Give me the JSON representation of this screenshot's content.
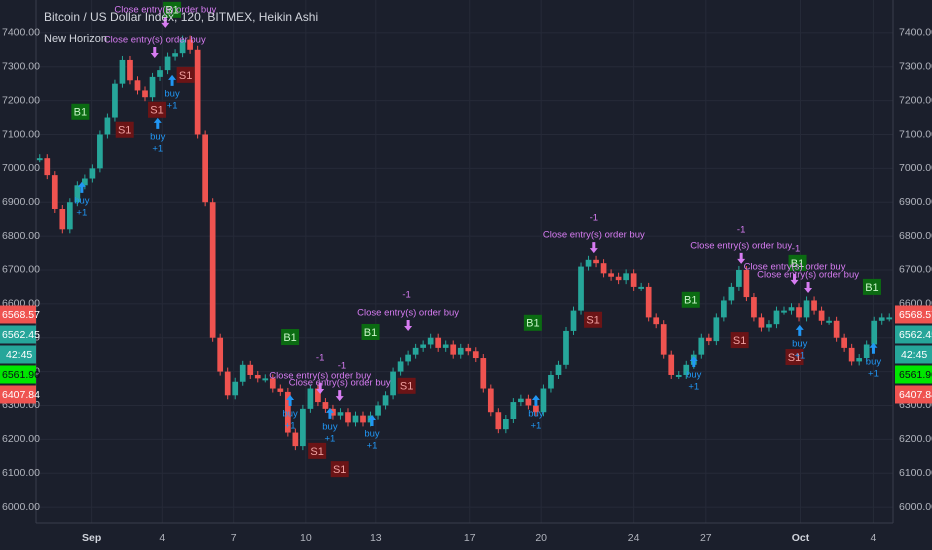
{
  "chart_data": {
    "type": "candlestick",
    "title": "Bitcoin / US Dollar Index, 120, BITMEX, Heikin Ashi",
    "subtitle": "New Horizon",
    "values": [
      7030,
      6980,
      6880,
      6820,
      6900,
      6950,
      6970,
      7000,
      7100,
      7150,
      7250,
      7320,
      7260,
      7230,
      7210,
      7270,
      7290,
      7330,
      7340,
      7380,
      7350,
      7100,
      6900,
      6500,
      6400,
      6330,
      6370,
      6420,
      6390,
      6380,
      6380,
      6350,
      6340,
      6220,
      6180,
      6290,
      6350,
      6310,
      6290,
      6270,
      6280,
      6250,
      6270,
      6250,
      6270,
      6300,
      6330,
      6400,
      6430,
      6450,
      6470,
      6480,
      6500,
      6470,
      6480,
      6450,
      6470,
      6460,
      6440,
      6350,
      6280,
      6230,
      6260,
      6310,
      6320,
      6300,
      6280,
      6350,
      6390,
      6420,
      6520,
      6580,
      6710,
      6730,
      6720,
      6690,
      6680,
      6670,
      6690,
      6650,
      6650,
      6560,
      6540,
      6450,
      6390,
      6390,
      6420,
      6450,
      6500,
      6490,
      6560,
      6610,
      6650,
      6700,
      6620,
      6560,
      6530,
      6540,
      6580,
      6580,
      6590,
      6560,
      6610,
      6580,
      6550,
      6550,
      6500,
      6470,
      6430,
      6440,
      6480,
      6550,
      6560,
      6560
    ],
    "up_color": "#26a69a",
    "down_color": "#ef5350",
    "xlim": [
      0,
      114
    ],
    "xticks": [
      {
        "value": 7.4,
        "label": "Sep"
      },
      {
        "value": 16.8,
        "label": "4"
      },
      {
        "value": 26.3,
        "label": "7"
      },
      {
        "value": 35.9,
        "label": "10"
      },
      {
        "value": 45.2,
        "label": "13"
      },
      {
        "value": 57.7,
        "label": "17"
      },
      {
        "value": 67.2,
        "label": "20"
      },
      {
        "value": 79.5,
        "label": "24"
      },
      {
        "value": 89.1,
        "label": "27"
      },
      {
        "value": 101.7,
        "label": "Oct"
      },
      {
        "value": 111.4,
        "label": "4"
      }
    ],
    "ylim": [
      5953,
      7497
    ],
    "yticks": [
      {
        "value": 7400,
        "label": "7400.00"
      },
      {
        "value": 7300,
        "label": "7300.00"
      },
      {
        "value": 7200,
        "label": "7200.00"
      },
      {
        "value": 7100,
        "label": "7100.00"
      },
      {
        "value": 7000,
        "label": "7000.00"
      },
      {
        "value": 6900,
        "label": "6900.00"
      },
      {
        "value": 6800,
        "label": "6800.00"
      },
      {
        "value": 6700,
        "label": "6700.00"
      },
      {
        "value": 6600,
        "label": "6600.00"
      },
      {
        "value": 6500,
        "label": "6500.00"
      },
      {
        "value": 6400,
        "label": "6400.00"
      },
      {
        "value": 6300,
        "label": "6300.00"
      },
      {
        "value": 6200,
        "label": "6200.00"
      },
      {
        "value": 6100,
        "label": "6100.00"
      },
      {
        "value": 6000,
        "label": "6000.00"
      }
    ],
    "grid": true,
    "price_tags": [
      {
        "value": 6568.57,
        "color": "#ef5350"
      },
      {
        "value": 6562.45,
        "color": "#26a69a",
        "countdown": "42:45"
      },
      {
        "value": 6561.9,
        "label": "6561.90",
        "color": "#00e600"
      },
      {
        "value": 6407.84,
        "color": "#ef5350"
      }
    ],
    "signals": [
      {
        "label": "B1",
        "x": 5.9,
        "y": 7167,
        "color": "#0b6b12"
      },
      {
        "label": "B1",
        "x": 18.1,
        "y": 7468,
        "color": "#0b6b12"
      },
      {
        "label": "B1",
        "x": 33.8,
        "y": 6502,
        "color": "#0b6b12"
      },
      {
        "label": "B1",
        "x": 44.5,
        "y": 6517,
        "color": "#0b6b12"
      },
      {
        "label": "B1",
        "x": 66.1,
        "y": 6544,
        "color": "#0b6b12"
      },
      {
        "label": "B1",
        "x": 87.1,
        "y": 6612,
        "color": "#0b6b12"
      },
      {
        "label": "B1",
        "x": 101.3,
        "y": 6721,
        "color": "#0b6b12"
      },
      {
        "label": "B1",
        "x": 111.2,
        "y": 6650,
        "color": "#0b6b12"
      },
      {
        "label": "S1",
        "x": 11.8,
        "y": 7114,
        "color": "#6b1416"
      },
      {
        "label": "S1",
        "x": 16.1,
        "y": 7173,
        "color": "#6b1416"
      },
      {
        "label": "S1",
        "x": 19.9,
        "y": 7276,
        "color": "#6b1416"
      },
      {
        "label": "S1",
        "x": 37.4,
        "y": 6166,
        "color": "#6b1416"
      },
      {
        "label": "S1",
        "x": 40.4,
        "y": 6112,
        "color": "#6b1416"
      },
      {
        "label": "S1",
        "x": 49.3,
        "y": 6358,
        "color": "#6b1416"
      },
      {
        "label": "S1",
        "x": 74.1,
        "y": 6553,
        "color": "#6b1416"
      },
      {
        "label": "S1",
        "x": 93.6,
        "y": 6493,
        "color": "#6b1416"
      },
      {
        "label": "S1",
        "x": 100.9,
        "y": 6443,
        "color": "#6b1416"
      }
    ],
    "orders": [
      {
        "label": "buy",
        "qty": "+1",
        "x": 6.1,
        "y": 6960
      },
      {
        "label": "buy",
        "qty": "+1",
        "x": 16.2,
        "y": 7149
      },
      {
        "label": "buy",
        "qty": "+1",
        "x": 18.1,
        "y": 7276
      },
      {
        "label": "buy",
        "qty": "+1",
        "x": 33.8,
        "y": 6331
      },
      {
        "label": "buy",
        "qty": "+1",
        "x": 39.1,
        "y": 6293
      },
      {
        "label": "buy",
        "qty": "+1",
        "x": 44.7,
        "y": 6272
      },
      {
        "label": "buy",
        "qty": "+1",
        "x": 66.5,
        "y": 6331
      },
      {
        "label": "buy",
        "qty": "+1",
        "x": 87.5,
        "y": 6446
      },
      {
        "label": "buy",
        "qty": "+1",
        "x": 101.6,
        "y": 6538
      },
      {
        "label": "buy",
        "qty": "+1",
        "x": 111.4,
        "y": 6485
      }
    ],
    "order_color": "#2196f3",
    "exits": [
      {
        "label": "Close entry(s) order buy",
        "x": 17.2,
        "y": 7468
      },
      {
        "label": "Close entry(s) order buy",
        "x": 15.8,
        "y": 7379
      },
      {
        "label": "Close entry(s) order buy",
        "x": 37.8,
        "y": 6387
      },
      {
        "label": "Close entry(s) order buy",
        "x": 40.4,
        "y": 6366
      },
      {
        "label": "Close entry(s) order buy",
        "x": 49.5,
        "y": 6573
      },
      {
        "label": "Close entry(s) order buy",
        "x": 74.2,
        "y": 6803
      },
      {
        "label": "Close entry(s) order buy",
        "x": 93.8,
        "y": 6771
      },
      {
        "label": "Close entry(s) order buy",
        "x": 100.9,
        "y": 6709
      },
      {
        "label": "Close entry(s) order buy",
        "x": 102.7,
        "y": 6685
      }
    ],
    "exit_qty": [
      {
        "label": "-1",
        "x": 49.3,
        "y": 6626
      },
      {
        "label": "-1",
        "x": 74.2,
        "y": 6854
      },
      {
        "label": "-1",
        "x": 93.8,
        "y": 6818
      },
      {
        "label": "-1",
        "x": 101.1,
        "y": 6762
      },
      {
        "label": "-1",
        "x": 37.8,
        "y": 6440
      },
      {
        "label": "-1",
        "x": 40.7,
        "y": 6417
      }
    ],
    "exit_color": "#d77cf2"
  }
}
